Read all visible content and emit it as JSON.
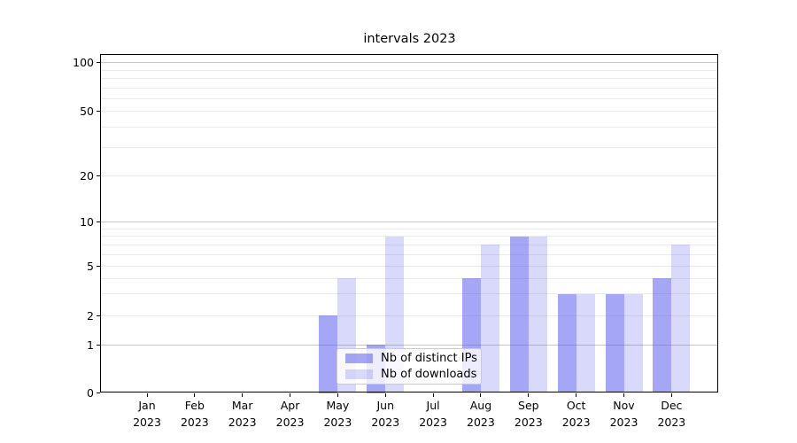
{
  "chart_data": {
    "type": "bar",
    "title": "intervals 2023",
    "categories": [
      "Jan",
      "Feb",
      "Mar",
      "Apr",
      "May",
      "Jun",
      "Jul",
      "Aug",
      "Sep",
      "Oct",
      "Nov",
      "Dec"
    ],
    "year_label": "2023",
    "series": [
      {
        "name": "Nb of distinct IPs",
        "color": "rgba(84,84,238,0.52)",
        "values": [
          0,
          0,
          0,
          0,
          2,
          1,
          0,
          4,
          8,
          3,
          3,
          4
        ]
      },
      {
        "name": "Nb of downloads",
        "color": "rgba(84,84,238,0.22)",
        "values": [
          0,
          0,
          0,
          0,
          4,
          8,
          0,
          7,
          8,
          3,
          3,
          7
        ]
      }
    ],
    "yscale": "symlog",
    "yticks": [
      0,
      1,
      2,
      5,
      10,
      20,
      50,
      100
    ],
    "minor_gridline_values": [
      3,
      4,
      6,
      7,
      8,
      9,
      30,
      40,
      60,
      70,
      80,
      90
    ],
    "major_gridline_values": [
      1,
      10,
      100
    ],
    "ylim": [
      0,
      114
    ],
    "grid": true,
    "legend_position": "inside lower-center"
  },
  "colors": {
    "bar_distinct_ips": "#a9a9f6",
    "bar_downloads": "#d9d9fa",
    "grid_minor": "#ebebeb",
    "grid_major": "#c6c6c6",
    "axis": "#000000",
    "background": "#ffffff"
  }
}
